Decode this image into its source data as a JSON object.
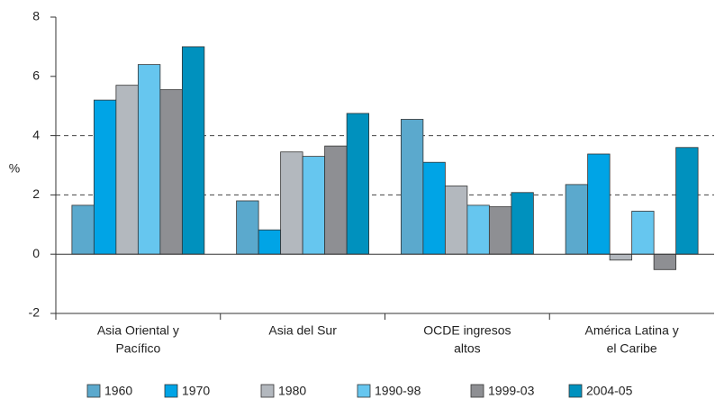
{
  "chart_data": {
    "type": "bar",
    "y_label": "%",
    "categories": [
      [
        "Asia Oriental y",
        "Pacífico"
      ],
      [
        "Asia del Sur"
      ],
      [
        "OCDE ingresos",
        "altos"
      ],
      [
        "América Latina y",
        "el Caribe"
      ]
    ],
    "series": [
      {
        "name": "1960",
        "color": "#5ba9cd",
        "values": [
          1.65,
          1.8,
          4.55,
          2.35
        ]
      },
      {
        "name": "1970",
        "color": "#00a4e6",
        "values": [
          5.2,
          0.82,
          3.1,
          3.38
        ]
      },
      {
        "name": "1980",
        "color": "#b3b8be",
        "values": [
          5.7,
          3.45,
          2.3,
          -0.2
        ]
      },
      {
        "name": "1990-98",
        "color": "#66c6ef",
        "values": [
          6.4,
          3.3,
          1.65,
          1.45
        ]
      },
      {
        "name": "1999-03",
        "color": "#8e8f93",
        "values": [
          5.55,
          3.65,
          1.6,
          -0.52
        ]
      },
      {
        "name": "2004-05",
        "color": "#0091be",
        "values": [
          7.0,
          4.75,
          2.08,
          3.6
        ]
      }
    ],
    "ylim": [
      -2,
      8
    ],
    "yticks": [
      -2,
      0,
      2,
      4,
      6,
      8
    ],
    "grid_lines": [
      2,
      4
    ]
  }
}
